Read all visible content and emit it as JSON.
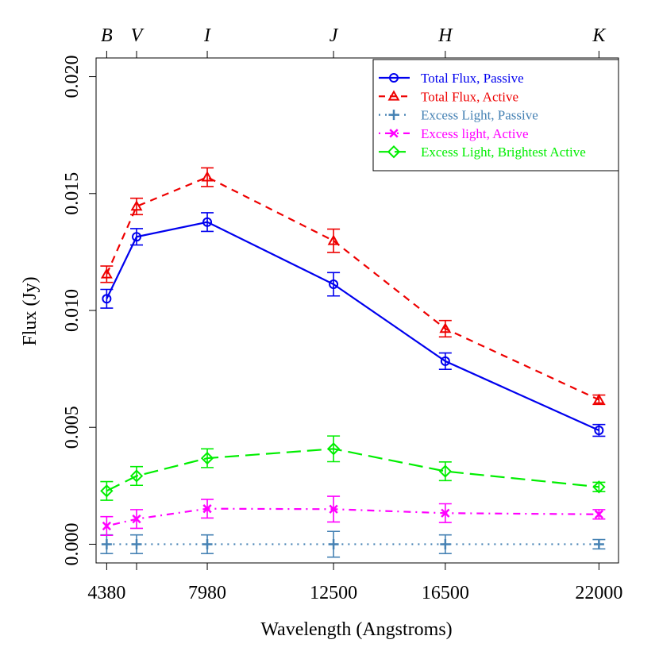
{
  "chart_data": {
    "type": "line",
    "xlabel": "Wavelength (Angstroms)",
    "ylabel": "Flux (Jy)",
    "xlim": [
      4000,
      22700
    ],
    "ylim": [
      -0.0008,
      0.0208
    ],
    "x_ticks": [
      4380,
      7980,
      12500,
      16500,
      22000
    ],
    "x_tick_labels": [
      "4380",
      "7980",
      "12500",
      "16500",
      "22000"
    ],
    "x_minor_ticks": [
      5450
    ],
    "y_ticks": [
      0.0,
      0.005,
      0.01,
      0.015,
      0.02
    ],
    "y_tick_labels": [
      "0.000",
      "0.005",
      "0.010",
      "0.015",
      "0.020"
    ],
    "top_axis": {
      "positions": [
        4380,
        5450,
        7980,
        12500,
        16500,
        22000
      ],
      "labels": [
        "B",
        "V",
        "I",
        "J",
        "H",
        "K"
      ]
    },
    "x": [
      4380,
      5450,
      7980,
      12500,
      16500,
      22000
    ],
    "series": [
      {
        "name": "Total Flux, Passive",
        "color": "#0000ee",
        "dash": "solid",
        "marker": "circle",
        "values": [
          0.0105,
          0.01315,
          0.01378,
          0.01112,
          0.00783,
          0.00487
        ],
        "errors": [
          0.0004,
          0.00035,
          0.0004,
          0.0005,
          0.00035,
          0.00025
        ]
      },
      {
        "name": "Total Flux, Active",
        "color": "#ee0000",
        "dash": "dashed",
        "marker": "triangle",
        "values": [
          0.01155,
          0.01445,
          0.0157,
          0.01298,
          0.00922,
          0.00618
        ],
        "errors": [
          0.00035,
          0.00035,
          0.0004,
          0.0005,
          0.00035,
          0.0002
        ]
      },
      {
        "name": "Excess Light, Passive",
        "color": "#4682b4",
        "dash": "dotted",
        "marker": "plus",
        "values": [
          0.0,
          0.0,
          0.0,
          0.0,
          0.0,
          0.0
        ],
        "errors": [
          0.0004,
          0.0004,
          0.0004,
          0.00055,
          0.0004,
          0.0002
        ]
      },
      {
        "name": "Excess light, Active",
        "color": "#ff00ff",
        "dash": "dotdash",
        "marker": "cross",
        "values": [
          0.00078,
          0.00108,
          0.00152,
          0.0015,
          0.00133,
          0.00128
        ],
        "errors": [
          0.0004,
          0.0004,
          0.0004,
          0.00055,
          0.0004,
          0.0002
        ]
      },
      {
        "name": "Excess Light, Brightest Active",
        "color": "#00ee00",
        "dash": "longdash",
        "marker": "diamond",
        "values": [
          0.00228,
          0.00292,
          0.00368,
          0.00408,
          0.00312,
          0.00245
        ],
        "errors": [
          0.0004,
          0.0004,
          0.0004,
          0.00055,
          0.0004,
          0.0002
        ]
      }
    ],
    "legend_position": "top-right",
    "grid": false
  }
}
